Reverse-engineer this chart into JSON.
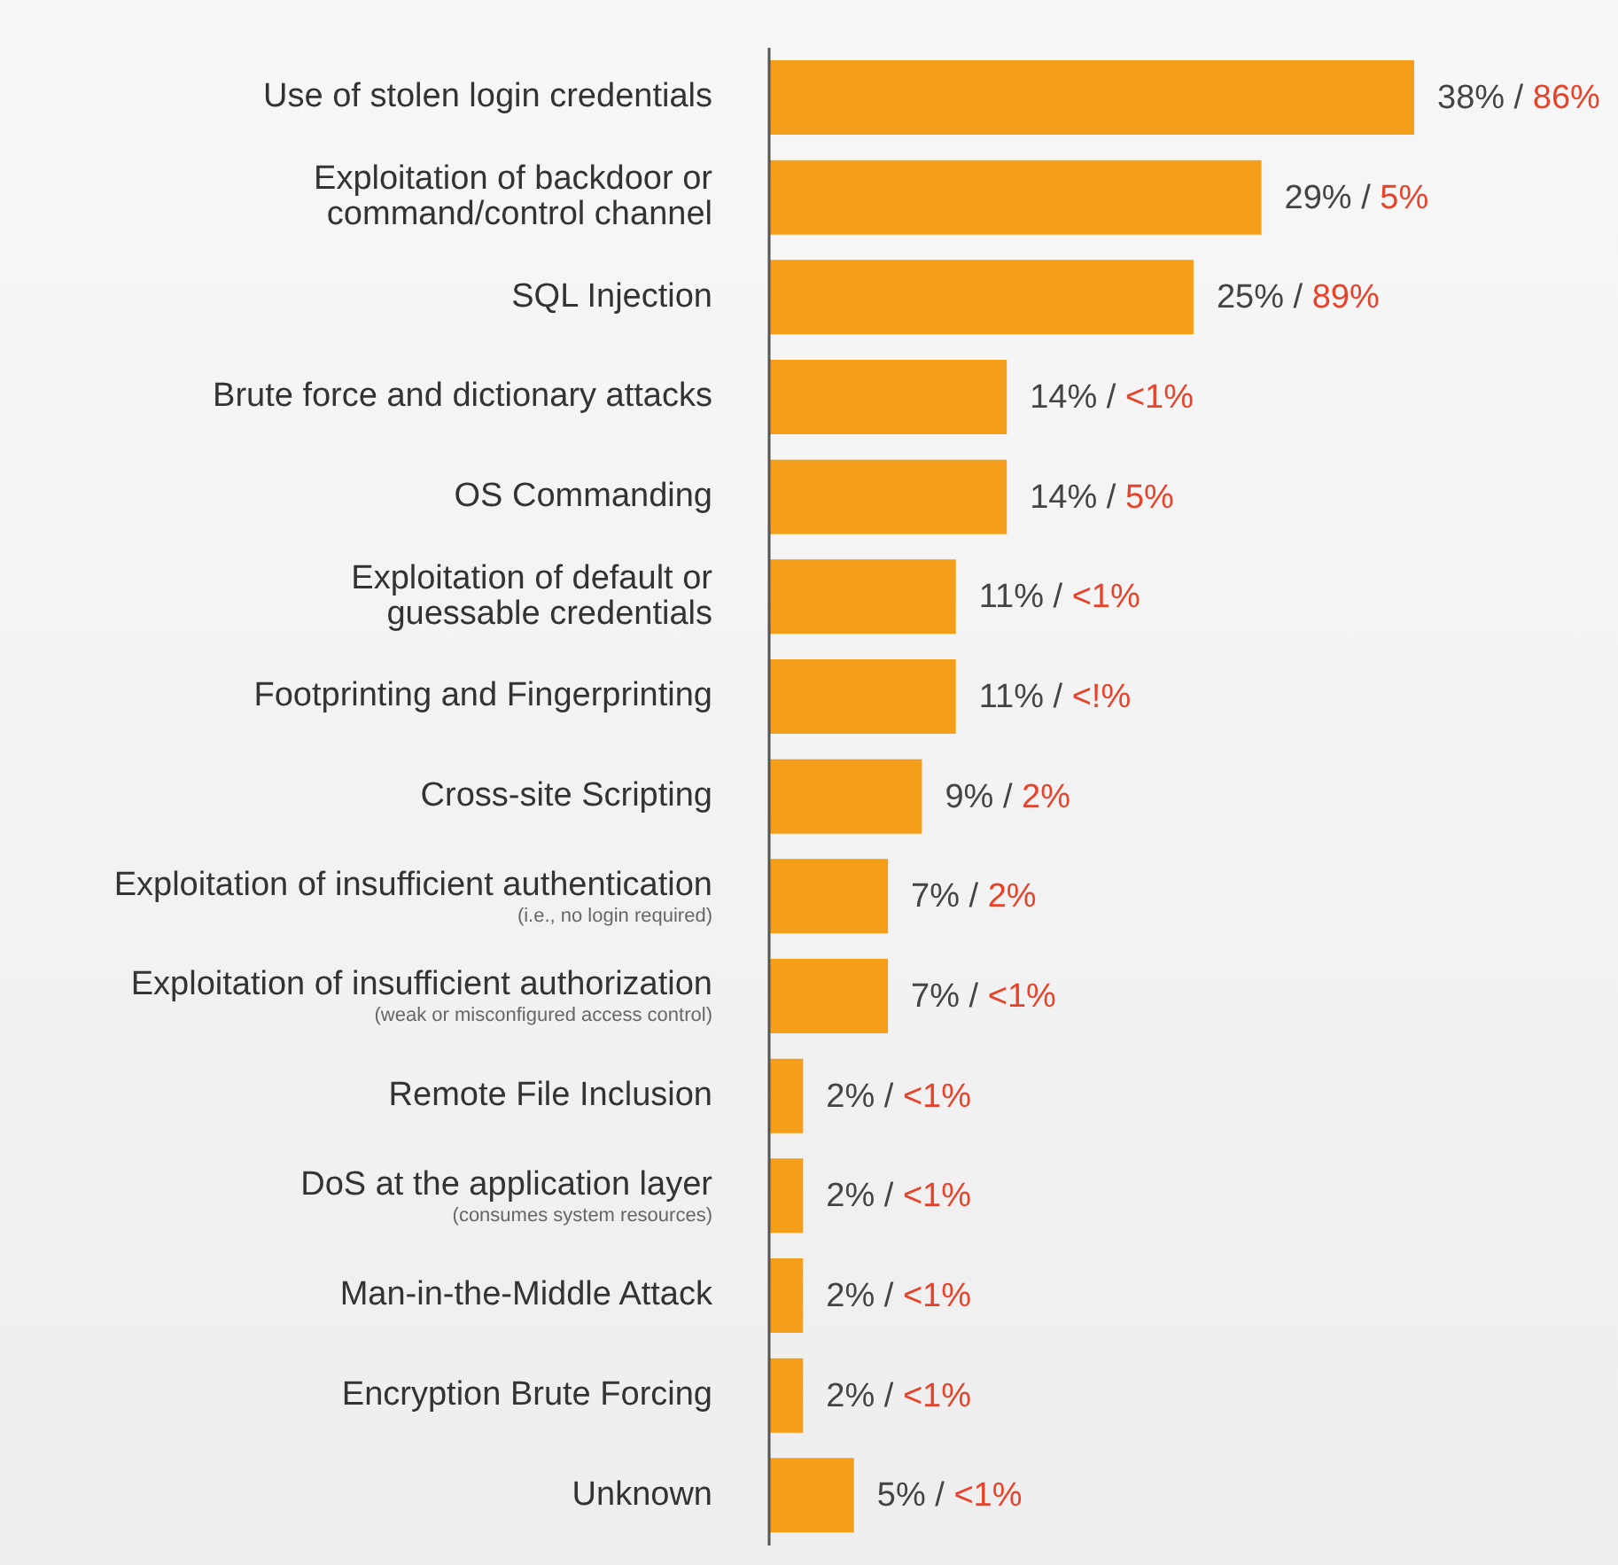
{
  "chart_data": {
    "type": "bar",
    "orientation": "horizontal",
    "categories": [
      "Use of stolen login credentials",
      "Exploitation of backdoor or\ncommand/control channel",
      "SQL Injection",
      "Brute force and dictionary attacks",
      "OS Commanding",
      "Exploitation of default or\nguessable credentials",
      "Footprinting and Fingerprinting",
      "Cross-site Scripting",
      "Exploitation of insufficient authentication\n(i.e., no login required)",
      "Exploitation of insufficient authorization\n(weak or misconfigured access control)",
      "Remote File Inclusion",
      "DoS at the application layer\n(consumes system resources)",
      "Man-in-the-Middle Attack",
      "Encryption Brute Forcing",
      "Unknown"
    ],
    "values": [
      38,
      29,
      25,
      14,
      14,
      11,
      11,
      9,
      7,
      7,
      2,
      2,
      2,
      2,
      5
    ],
    "color": "#f59e1a",
    "value_labels": [
      "38% / 86%",
      "29% / 5%",
      "25% / 89%",
      "14% / <1%",
      "14% / 5%",
      "11% / <1%",
      "11% / <!%",
      "9% / 2%",
      "7% / 2%",
      "7% / <1%",
      "2% / <1%",
      "2% / <1%",
      "2% / <1%",
      "2% / <1%",
      "5% / <1%"
    ],
    "tick_labels": "y"
  }
}
